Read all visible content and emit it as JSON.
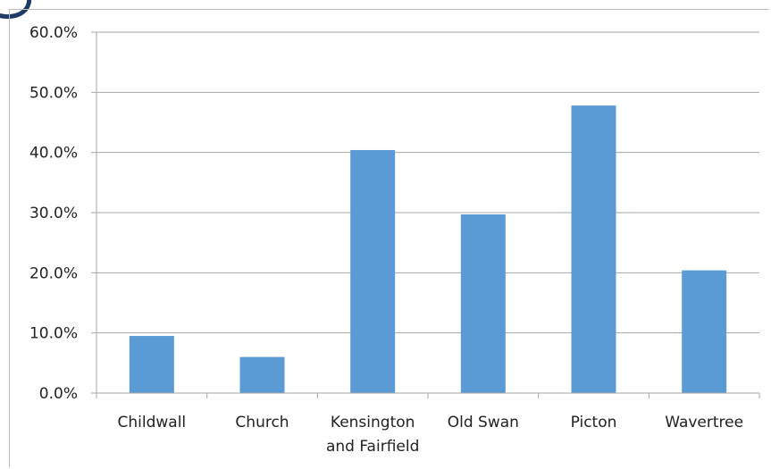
{
  "chart_data": {
    "type": "bar",
    "categories": [
      [
        "Childwall"
      ],
      [
        "Church"
      ],
      [
        "Kensington",
        "and Fairfield"
      ],
      [
        "Old Swan"
      ],
      [
        "Picton"
      ],
      [
        "Wavertree"
      ]
    ],
    "values": [
      9.5,
      6.0,
      40.4,
      29.7,
      47.8,
      20.4
    ],
    "y_ticks": [
      "0.0%",
      "10.0%",
      "20.0%",
      "30.0%",
      "40.0%",
      "50.0%",
      "60.0%"
    ],
    "ylim": [
      0,
      60
    ],
    "grid": true,
    "bar_color": "#5b9bd5",
    "grid_color": "#a6a6a6"
  }
}
